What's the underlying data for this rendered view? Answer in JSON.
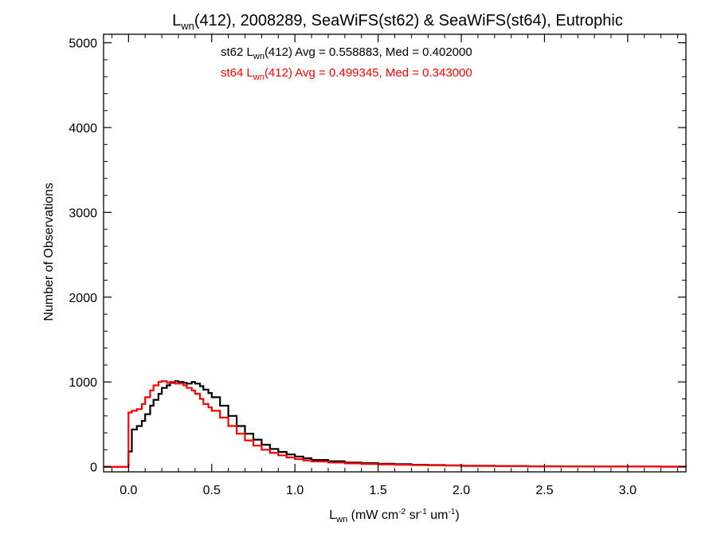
{
  "chart_data": {
    "type": "histogram",
    "title": {
      "pre": "L",
      "sub": "wn",
      "post": "(412), 2008289, SeaWiFS(st62) & SeaWiFS(st64), Eutrophic"
    },
    "xlabel": {
      "pre": "L",
      "sub": "wn",
      "part1": " (mW cm",
      "sup1": "-2",
      "part2": " sr",
      "sup2": "-1",
      "part3": " um",
      "sup3": "-1",
      "part4": ")"
    },
    "ylabel": "Number of Observations",
    "xlim": [
      -0.15,
      3.35
    ],
    "ylim": [
      -60,
      5100
    ],
    "x_ticks": [
      "0.0",
      "0.5",
      "1.0",
      "1.5",
      "2.0",
      "2.5",
      "3.0"
    ],
    "x_tick_values": [
      0.0,
      0.5,
      1.0,
      1.5,
      2.0,
      2.5,
      3.0
    ],
    "y_ticks": [
      "0",
      "1000",
      "2000",
      "3000",
      "4000",
      "5000"
    ],
    "y_tick_values": [
      0,
      1000,
      2000,
      3000,
      4000,
      5000
    ],
    "grid": false,
    "legend_position": "top-center",
    "series": [
      {
        "label": {
          "pre": "st62 L",
          "sub": "wn",
          "post": "(412) Avg = 0.558883, Med = 0.402000"
        },
        "color": "#000000",
        "x": [
          -0.15,
          -0.01,
          0.0,
          0.02,
          0.05,
          0.08,
          0.1,
          0.13,
          0.15,
          0.18,
          0.2,
          0.23,
          0.25,
          0.28,
          0.3,
          0.33,
          0.35,
          0.38,
          0.4,
          0.43,
          0.45,
          0.48,
          0.5,
          0.55,
          0.6,
          0.65,
          0.7,
          0.75,
          0.8,
          0.85,
          0.9,
          0.95,
          1.0,
          1.05,
          1.1,
          1.2,
          1.3,
          1.4,
          1.5,
          1.6,
          1.7,
          1.8,
          1.9,
          2.0,
          2.2,
          2.4,
          2.6,
          2.8,
          3.0,
          3.2,
          3.35
        ],
        "y": [
          0,
          0,
          180,
          440,
          480,
          540,
          620,
          720,
          790,
          860,
          930,
          960,
          990,
          1010,
          1000,
          990,
          980,
          1000,
          980,
          950,
          910,
          870,
          820,
          720,
          600,
          480,
          390,
          320,
          260,
          210,
          175,
          145,
          120,
          100,
          80,
          65,
          50,
          42,
          35,
          30,
          24,
          20,
          16,
          12,
          9,
          6,
          4,
          3,
          2,
          1,
          0
        ]
      },
      {
        "label": {
          "pre": "st64 L",
          "sub": "wn",
          "post": "(412) Avg = 0.499345, Med = 0.343000"
        },
        "color": "#ff0000",
        "x": [
          -0.15,
          -0.01,
          0.0,
          0.02,
          0.05,
          0.08,
          0.1,
          0.13,
          0.15,
          0.18,
          0.2,
          0.23,
          0.25,
          0.28,
          0.3,
          0.33,
          0.35,
          0.38,
          0.4,
          0.43,
          0.45,
          0.48,
          0.5,
          0.55,
          0.6,
          0.65,
          0.7,
          0.75,
          0.8,
          0.85,
          0.9,
          0.95,
          1.0,
          1.05,
          1.1,
          1.2,
          1.3,
          1.4,
          1.5,
          1.6,
          1.7,
          1.8,
          1.9,
          2.0,
          2.2,
          2.4,
          2.6,
          2.8,
          3.0,
          3.2,
          3.35
        ],
        "y": [
          0,
          0,
          640,
          660,
          680,
          740,
          820,
          900,
          960,
          1000,
          1010,
          990,
          1000,
          980,
          980,
          960,
          930,
          900,
          860,
          800,
          740,
          700,
          660,
          580,
          480,
          390,
          310,
          250,
          200,
          165,
          135,
          110,
          90,
          75,
          62,
          50,
          40,
          33,
          28,
          24,
          20,
          17,
          14,
          10,
          8,
          5,
          4,
          3,
          2,
          1,
          0
        ]
      }
    ]
  }
}
